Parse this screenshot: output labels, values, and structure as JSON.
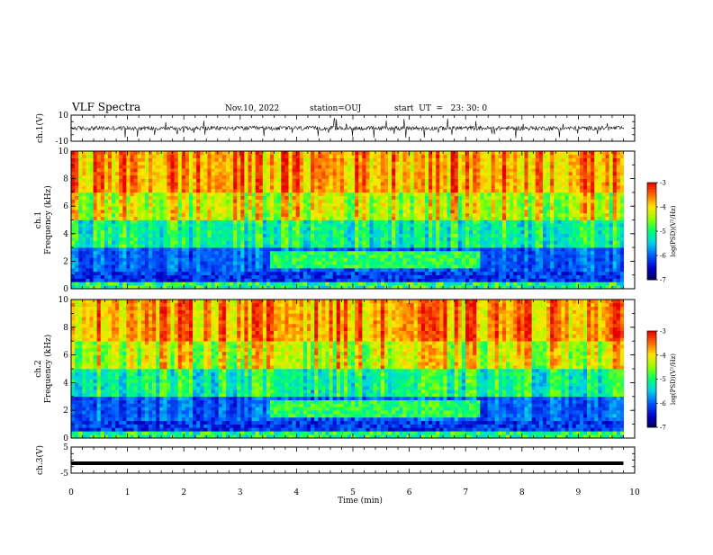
{
  "header": {
    "title": "VLF Spectra",
    "date": "Nov.10, 2022",
    "station": "station=OUJ",
    "start_ut": "start  UT  =   23: 30: 0"
  },
  "chart_data": [
    {
      "type": "line",
      "name": "ch1-waveform",
      "ylabel": "ch.1(V)",
      "ylim": [
        -10,
        10
      ],
      "yticks": [
        "10",
        "-10"
      ],
      "xlim": [
        0,
        10
      ]
    },
    {
      "type": "heatmap",
      "name": "ch1-spectrogram",
      "ylabel": "ch.1\nFrequency  (kHz)",
      "ylabel_line1": "ch.1",
      "ylabel_line2": "Frequency  (kHz)",
      "ylim": [
        0,
        10
      ],
      "yticks": [
        "0",
        "2",
        "4",
        "6",
        "8",
        "10"
      ],
      "xlim": [
        0,
        10
      ],
      "colorbar": {
        "label": "log(PSD)(V²/Hz)",
        "range": [
          -7,
          -3
        ],
        "ticks": [
          "-3",
          "-4",
          "-5",
          "-6",
          "-7"
        ]
      }
    },
    {
      "type": "heatmap",
      "name": "ch2-spectrogram",
      "ylabel_line1": "ch.2",
      "ylabel_line2": "Frequency  (kHz)",
      "ylim": [
        0,
        10
      ],
      "yticks": [
        "0",
        "2",
        "4",
        "6",
        "8",
        "10"
      ],
      "xlim": [
        0,
        10
      ],
      "colorbar": {
        "label": "log(PSD)(V²/Hz)",
        "range": [
          -7,
          -3
        ],
        "ticks": [
          "-3",
          "-4",
          "-5",
          "-6",
          "-7"
        ]
      }
    },
    {
      "type": "line",
      "name": "ch3-voltage",
      "ylabel": "ch.3(V)",
      "ylim": [
        -5,
        5
      ],
      "yticks": [
        "5",
        "-5"
      ],
      "x": [
        0,
        9.8
      ],
      "y": [
        -1.2,
        -1.2
      ],
      "xlabel": "Time  (min)",
      "xlim": [
        0,
        10
      ],
      "xticks": [
        "0",
        "1",
        "2",
        "3",
        "4",
        "5",
        "6",
        "7",
        "8",
        "9",
        "10"
      ]
    }
  ],
  "colors": {
    "ink": "#000000",
    "spectral_low": "#00008b",
    "spectral_mid": "#00ff66",
    "spectral_high": "#ff1a00"
  }
}
